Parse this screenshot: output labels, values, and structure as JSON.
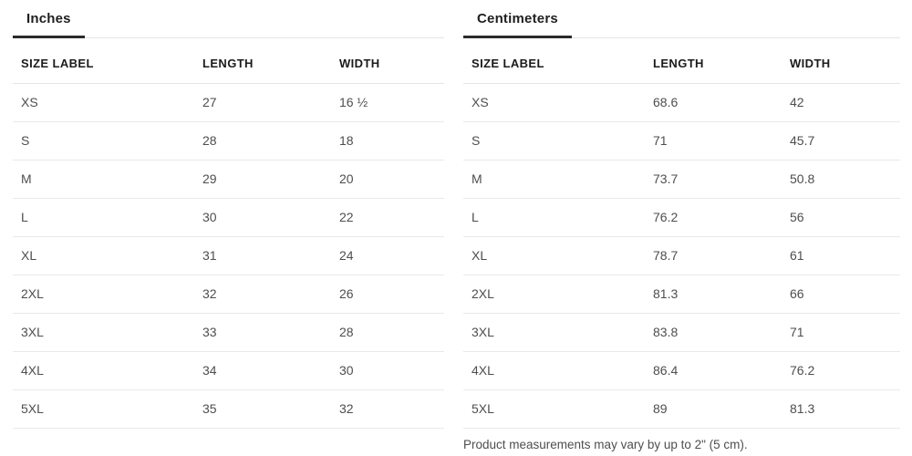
{
  "inches_table": {
    "tab_label": "Inches",
    "columns": [
      "SIZE LABEL",
      "LENGTH",
      "WIDTH"
    ],
    "rows": [
      {
        "size": "XS",
        "length": "27",
        "width": "16 ½"
      },
      {
        "size": "S",
        "length": "28",
        "width": "18"
      },
      {
        "size": "M",
        "length": "29",
        "width": "20"
      },
      {
        "size": "L",
        "length": "30",
        "width": "22"
      },
      {
        "size": "XL",
        "length": "31",
        "width": "24"
      },
      {
        "size": "2XL",
        "length": "32",
        "width": "26"
      },
      {
        "size": "3XL",
        "length": "33",
        "width": "28"
      },
      {
        "size": "4XL",
        "length": "34",
        "width": "30"
      },
      {
        "size": "5XL",
        "length": "35",
        "width": "32"
      }
    ]
  },
  "centimeters_table": {
    "tab_label": "Centimeters",
    "columns": [
      "SIZE LABEL",
      "LENGTH",
      "WIDTH"
    ],
    "rows": [
      {
        "size": "XS",
        "length": "68.6",
        "width": "42"
      },
      {
        "size": "S",
        "length": "71",
        "width": "45.7"
      },
      {
        "size": "M",
        "length": "73.7",
        "width": "50.8"
      },
      {
        "size": "L",
        "length": "76.2",
        "width": "56"
      },
      {
        "size": "XL",
        "length": "78.7",
        "width": "61"
      },
      {
        "size": "2XL",
        "length": "81.3",
        "width": "66"
      },
      {
        "size": "3XL",
        "length": "83.8",
        "width": "71"
      },
      {
        "size": "4XL",
        "length": "86.4",
        "width": "76.2"
      },
      {
        "size": "5XL",
        "length": "89",
        "width": "81.3"
      }
    ]
  },
  "footer_note": "Product measurements may vary by up to 2\" (5 cm).",
  "colors": {
    "active_tab_underline": "#2b2b2b",
    "divider": "#e5e5e5",
    "header_text": "#1b1b1b",
    "body_text": "#4e4e4e"
  }
}
